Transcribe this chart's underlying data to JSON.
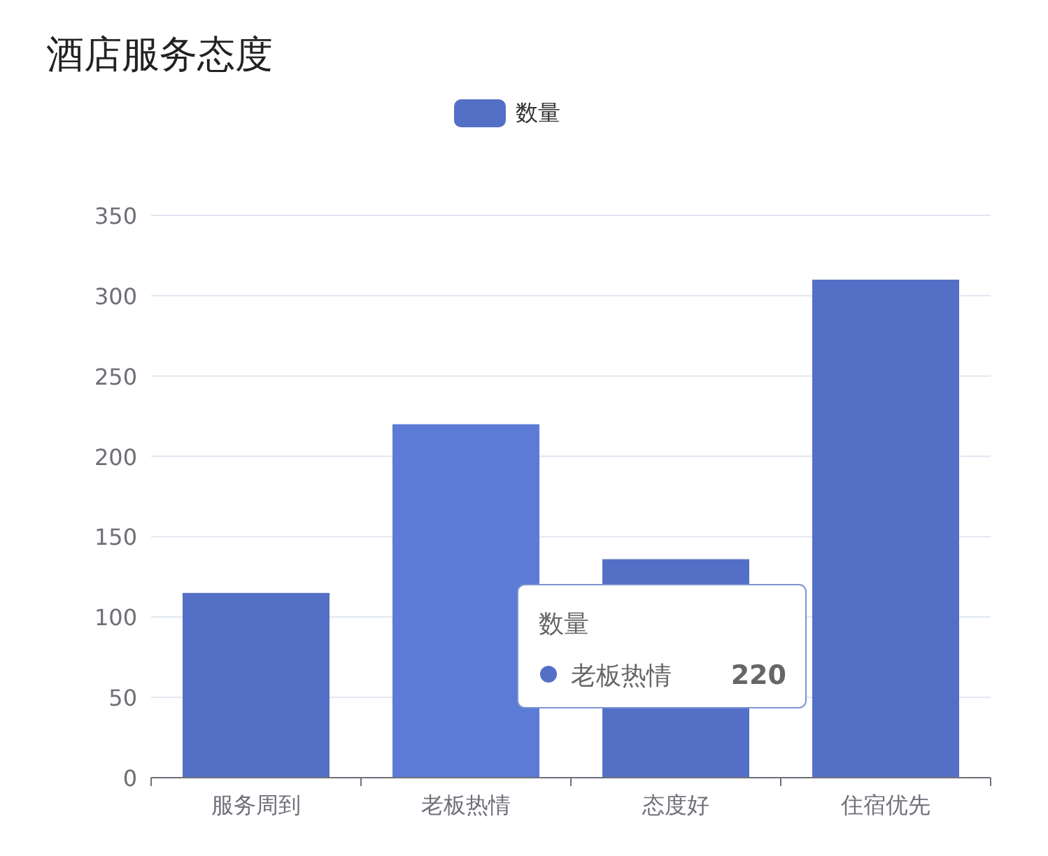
{
  "chart_data": {
    "type": "bar",
    "title": "酒店服务态度",
    "categories": [
      "服务周到",
      "老板热情",
      "态度好",
      "住宿优先"
    ],
    "series": [
      {
        "name": "数量",
        "color": "#5470c6",
        "colors": [
          "#5470c6",
          "#5b7bd6",
          "#5470c6",
          "#5470c6"
        ],
        "values": [
          115,
          220,
          136,
          310
        ]
      }
    ],
    "ylim": [
      0,
      350
    ],
    "yticks": [
      0,
      50,
      100,
      150,
      200,
      250,
      300,
      350
    ],
    "grid": "y",
    "legend": "top",
    "annotations": [
      "数量",
      "老板热情",
      "220"
    ]
  }
}
